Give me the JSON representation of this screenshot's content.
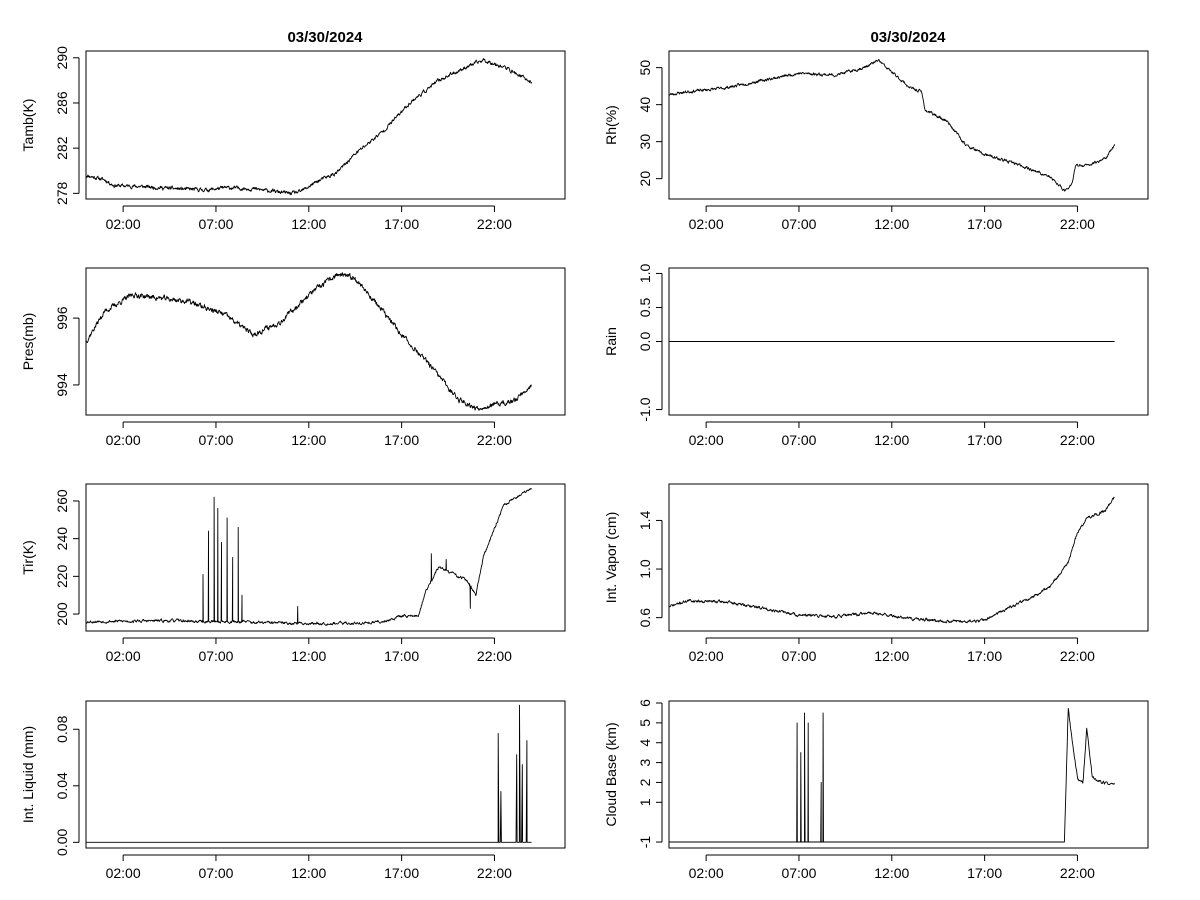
{
  "figure": {
    "left_title": "03/30/2024",
    "right_title": "03/30/2024",
    "background": "#ffffff",
    "line_color": "#000000"
  },
  "chart_data": [
    {
      "type": "line",
      "id": "tamb",
      "ylabel": "Tamb(K)",
      "xlim": [
        0,
        25.8
      ],
      "ylim": [
        277.5,
        290.6
      ],
      "xticks": [
        2,
        7,
        12,
        17,
        22
      ],
      "xtick_labels": [
        "02:00",
        "07:00",
        "12:00",
        "17:00",
        "22:00"
      ],
      "yticks": [
        278,
        282,
        286,
        290
      ],
      "ytick_labels": [
        "278",
        "282",
        "286",
        "290"
      ],
      "knots": [
        [
          0,
          279.6
        ],
        [
          1,
          279.2
        ],
        [
          1.5,
          278.7
        ],
        [
          3,
          278.6
        ],
        [
          5,
          278.4
        ],
        [
          6.5,
          278.3
        ],
        [
          7.5,
          278.5
        ],
        [
          9,
          278.4
        ],
        [
          10.5,
          278.1
        ],
        [
          11,
          278.0
        ],
        [
          11.5,
          278.1
        ],
        [
          12.5,
          279.1
        ],
        [
          13.5,
          279.8
        ],
        [
          14.5,
          281.5
        ],
        [
          16,
          283.5
        ],
        [
          17.5,
          286.1
        ],
        [
          19,
          288.0
        ],
        [
          20.5,
          289.2
        ],
        [
          21.4,
          289.8
        ],
        [
          22.5,
          289.2
        ],
        [
          23.5,
          288.3
        ],
        [
          24,
          287.8
        ]
      ],
      "noise": 0.25,
      "seed": 11,
      "n": 1200
    },
    {
      "type": "line",
      "id": "rh",
      "ylabel": "Rh(%)",
      "xlim": [
        0,
        25.8
      ],
      "ylim": [
        14.5,
        54.5
      ],
      "xticks": [
        2,
        7,
        12,
        17,
        22
      ],
      "xtick_labels": [
        "02:00",
        "07:00",
        "12:00",
        "17:00",
        "22:00"
      ],
      "yticks": [
        20,
        30,
        40,
        50
      ],
      "ytick_labels": [
        "20",
        "30",
        "40",
        "50"
      ],
      "knots": [
        [
          0,
          42.7
        ],
        [
          1,
          43.5
        ],
        [
          3,
          44.5
        ],
        [
          5,
          46.5
        ],
        [
          7,
          48.5
        ],
        [
          9,
          48.0
        ],
        [
          10.5,
          50
        ],
        [
          11.3,
          52
        ],
        [
          11.6,
          50.5
        ],
        [
          13,
          44.5
        ],
        [
          13.6,
          43.5
        ],
        [
          13.8,
          38.5
        ],
        [
          15,
          35.5
        ],
        [
          16,
          29
        ],
        [
          17,
          26.5
        ],
        [
          19,
          23.5
        ],
        [
          20.5,
          20.5
        ],
        [
          21.3,
          16.8
        ],
        [
          21.7,
          18.5
        ],
        [
          21.9,
          23.5
        ],
        [
          22.5,
          23.5
        ],
        [
          23.5,
          25.5
        ],
        [
          24,
          29
        ]
      ],
      "noise": 0.6,
      "seed": 23,
      "n": 1200
    },
    {
      "type": "line",
      "id": "pres",
      "ylabel": "Pres(mb)",
      "xlim": [
        0,
        25.8
      ],
      "ylim": [
        993.1,
        997.5
      ],
      "xticks": [
        2,
        7,
        12,
        17,
        22
      ],
      "xtick_labels": [
        "02:00",
        "07:00",
        "12:00",
        "17:00",
        "22:00"
      ],
      "yticks": [
        994,
        996
      ],
      "ytick_labels": [
        "994",
        "996"
      ],
      "knots": [
        [
          0,
          995.3
        ],
        [
          1,
          996.2
        ],
        [
          2.5,
          996.7
        ],
        [
          4,
          996.6
        ],
        [
          5.5,
          996.5
        ],
        [
          7.5,
          996.1
        ],
        [
          9,
          995.5
        ],
        [
          10.5,
          995.9
        ],
        [
          12,
          996.7
        ],
        [
          13.5,
          997.3
        ],
        [
          14.5,
          997.2
        ],
        [
          16,
          996.2
        ],
        [
          17,
          995.5
        ],
        [
          18.5,
          994.6
        ],
        [
          20,
          993.6
        ],
        [
          21,
          993.3
        ],
        [
          22,
          993.4
        ],
        [
          23,
          993.5
        ],
        [
          24,
          994.0
        ]
      ],
      "noise": 0.12,
      "seed": 37,
      "n": 1200
    },
    {
      "type": "line",
      "id": "rain",
      "ylabel": "Rain",
      "xlim": [
        0,
        25.8
      ],
      "ylim": [
        -1.08,
        1.08
      ],
      "xticks": [
        2,
        7,
        12,
        17,
        22
      ],
      "xtick_labels": [
        "02:00",
        "07:00",
        "12:00",
        "17:00",
        "22:00"
      ],
      "yticks": [
        -1.0,
        0.0,
        0.5,
        1.0
      ],
      "ytick_labels": [
        "-1.0",
        "0.0",
        "0.5",
        "1.0"
      ],
      "knots": [
        [
          0,
          0
        ],
        [
          24,
          0
        ]
      ],
      "noise": 0,
      "seed": 1,
      "n": 2
    },
    {
      "type": "line",
      "id": "tir",
      "ylabel": "Tir(K)",
      "xlim": [
        0,
        25.8
      ],
      "ylim": [
        191,
        269
      ],
      "xticks": [
        2,
        7,
        12,
        17,
        22
      ],
      "xtick_labels": [
        "02:00",
        "07:00",
        "12:00",
        "17:00",
        "22:00"
      ],
      "yticks": [
        200,
        220,
        240,
        260
      ],
      "ytick_labels": [
        "200",
        "220",
        "240",
        "260"
      ],
      "knots": [
        [
          0,
          196
        ],
        [
          5,
          196.5
        ],
        [
          6,
          196
        ],
        [
          8.5,
          196
        ],
        [
          9,
          195.5
        ],
        [
          12,
          195
        ],
        [
          15,
          195.2
        ],
        [
          16,
          196
        ],
        [
          17,
          199
        ],
        [
          17.9,
          199
        ],
        [
          18.3,
          212
        ],
        [
          19,
          225
        ],
        [
          20.5,
          218
        ],
        [
          21,
          210
        ],
        [
          21.4,
          230
        ],
        [
          22.5,
          258
        ],
        [
          23.2,
          262
        ],
        [
          24,
          267
        ]
      ],
      "noise": 1.2,
      "seed": 53,
      "n": 1000,
      "spikes": [
        [
          6.3,
          221
        ],
        [
          6.6,
          244
        ],
        [
          6.9,
          262
        ],
        [
          7.1,
          256
        ],
        [
          7.3,
          238
        ],
        [
          7.6,
          251
        ],
        [
          7.9,
          230
        ],
        [
          8.2,
          246
        ],
        [
          8.4,
          210
        ],
        [
          11.4,
          204
        ],
        [
          18.6,
          232
        ],
        [
          19.4,
          229
        ],
        [
          20.7,
          203
        ]
      ]
    },
    {
      "type": "line",
      "id": "vapor",
      "ylabel": "Int. Vapor (cm)",
      "xlim": [
        0,
        25.8
      ],
      "ylim": [
        0.49,
        1.7
      ],
      "xticks": [
        2,
        7,
        12,
        17,
        22
      ],
      "xtick_labels": [
        "02:00",
        "07:00",
        "12:00",
        "17:00",
        "22:00"
      ],
      "yticks": [
        0.6,
        1.0,
        1.4
      ],
      "ytick_labels": [
        "0.6",
        "1.0",
        "1.4"
      ],
      "knots": [
        [
          0,
          0.69
        ],
        [
          1,
          0.74
        ],
        [
          3,
          0.73
        ],
        [
          5,
          0.68
        ],
        [
          7,
          0.62
        ],
        [
          9,
          0.61
        ],
        [
          11,
          0.64
        ],
        [
          13,
          0.59
        ],
        [
          15,
          0.57
        ],
        [
          16.5,
          0.57
        ],
        [
          17,
          0.58
        ],
        [
          18,
          0.66
        ],
        [
          19.5,
          0.76
        ],
        [
          20.5,
          0.85
        ],
        [
          21.5,
          1.05
        ],
        [
          22,
          1.3
        ],
        [
          22.5,
          1.42
        ],
        [
          23.5,
          1.48
        ],
        [
          24,
          1.6
        ]
      ],
      "noise": 0.018,
      "seed": 71,
      "n": 1200
    },
    {
      "type": "line",
      "id": "liquid",
      "ylabel": "Int. Liquid (mm)",
      "xlim": [
        0,
        25.8
      ],
      "ylim": [
        -0.004,
        0.1
      ],
      "xticks": [
        2,
        7,
        12,
        17,
        22
      ],
      "xtick_labels": [
        "02:00",
        "07:00",
        "12:00",
        "17:00",
        "22:00"
      ],
      "yticks": [
        0.0,
        0.04,
        0.08
      ],
      "ytick_labels": [
        "0.00",
        "0.04",
        "0.08"
      ],
      "knots": [
        [
          0,
          0
        ],
        [
          24,
          0
        ]
      ],
      "noise": 0,
      "seed": 1,
      "n": 400,
      "spikes": [
        [
          22.2,
          0.077
        ],
        [
          22.35,
          0.036
        ],
        [
          23.2,
          0.062
        ],
        [
          23.35,
          0.097
        ],
        [
          23.5,
          0.055
        ],
        [
          23.75,
          0.072
        ]
      ]
    },
    {
      "type": "line",
      "id": "cloud",
      "ylabel": "Cloud Base (km)",
      "xlim": [
        0,
        25.8
      ],
      "ylim": [
        -1.3,
        6.1
      ],
      "xticks": [
        2,
        7,
        12,
        17,
        22
      ],
      "xtick_labels": [
        "02:00",
        "07:00",
        "12:00",
        "17:00",
        "22:00"
      ],
      "yticks": [
        -1,
        1,
        2,
        3,
        4,
        5,
        6
      ],
      "ytick_labels": [
        "-1",
        "1",
        "2",
        "3",
        "4",
        "5",
        "6"
      ],
      "knots": [
        [
          0,
          -1
        ],
        [
          21.3,
          -1
        ],
        [
          21.5,
          5.7
        ],
        [
          21.8,
          3.5
        ],
        [
          22.0,
          2.2
        ],
        [
          22.3,
          2.0
        ],
        [
          22.5,
          4.7
        ],
        [
          22.8,
          2.3
        ],
        [
          23.3,
          2.0
        ],
        [
          24,
          1.9
        ]
      ],
      "noise": 0.15,
      "seed": 89,
      "n": 800,
      "noise_from": 21.4,
      "spikes": [
        [
          6.9,
          5.0
        ],
        [
          7.1,
          3.5
        ],
        [
          7.3,
          5.5
        ],
        [
          7.5,
          5.0
        ],
        [
          8.2,
          2.0
        ],
        [
          8.3,
          5.5
        ]
      ]
    }
  ]
}
